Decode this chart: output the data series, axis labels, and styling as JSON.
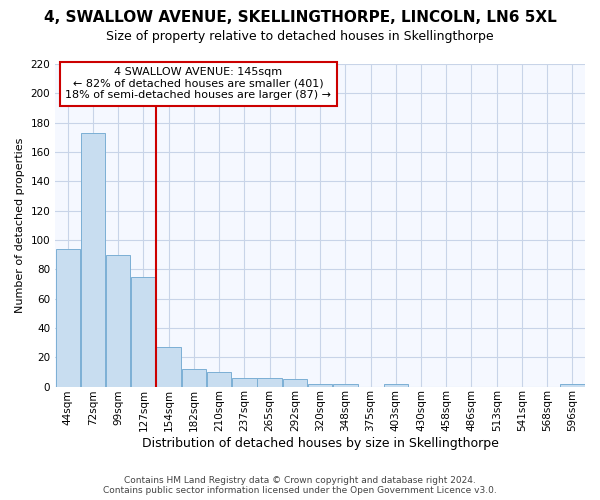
{
  "title": "4, SWALLOW AVENUE, SKELLINGTHORPE, LINCOLN, LN6 5XL",
  "subtitle": "Size of property relative to detached houses in Skellingthorpe",
  "xlabel": "Distribution of detached houses by size in Skellingthorpe",
  "ylabel": "Number of detached properties",
  "bin_labels": [
    "44sqm",
    "72sqm",
    "99sqm",
    "127sqm",
    "154sqm",
    "182sqm",
    "210sqm",
    "237sqm",
    "265sqm",
    "292sqm",
    "320sqm",
    "348sqm",
    "375sqm",
    "403sqm",
    "430sqm",
    "458sqm",
    "486sqm",
    "513sqm",
    "541sqm",
    "568sqm",
    "596sqm"
  ],
  "bar_heights": [
    94,
    173,
    90,
    75,
    27,
    12,
    10,
    6,
    6,
    5,
    2,
    2,
    0,
    2,
    0,
    0,
    0,
    0,
    0,
    0,
    2
  ],
  "bar_color": "#c8ddf0",
  "bar_edge_color": "#7bafd4",
  "ylim_max": 220,
  "yticks": [
    0,
    20,
    40,
    60,
    80,
    100,
    120,
    140,
    160,
    180,
    200,
    220
  ],
  "vline_bin_index": 4,
  "annotation_title": "4 SWALLOW AVENUE: 145sqm",
  "annotation_line1": "← 82% of detached houses are smaller (401)",
  "annotation_line2": "18% of semi-detached houses are larger (87) →",
  "vline_color": "#cc0000",
  "ann_box_facecolor": "#ffffff",
  "ann_box_edgecolor": "#cc0000",
  "plot_bg_color": "#f5f8ff",
  "fig_bg_color": "#ffffff",
  "grid_color": "#c8d4e8",
  "footer_line1": "Contains HM Land Registry data © Crown copyright and database right 2024.",
  "footer_line2": "Contains public sector information licensed under the Open Government Licence v3.0.",
  "title_fontsize": 11,
  "subtitle_fontsize": 9,
  "ylabel_fontsize": 8,
  "xlabel_fontsize": 9,
  "tick_fontsize": 7.5,
  "ann_fontsize": 8,
  "footer_fontsize": 6.5
}
